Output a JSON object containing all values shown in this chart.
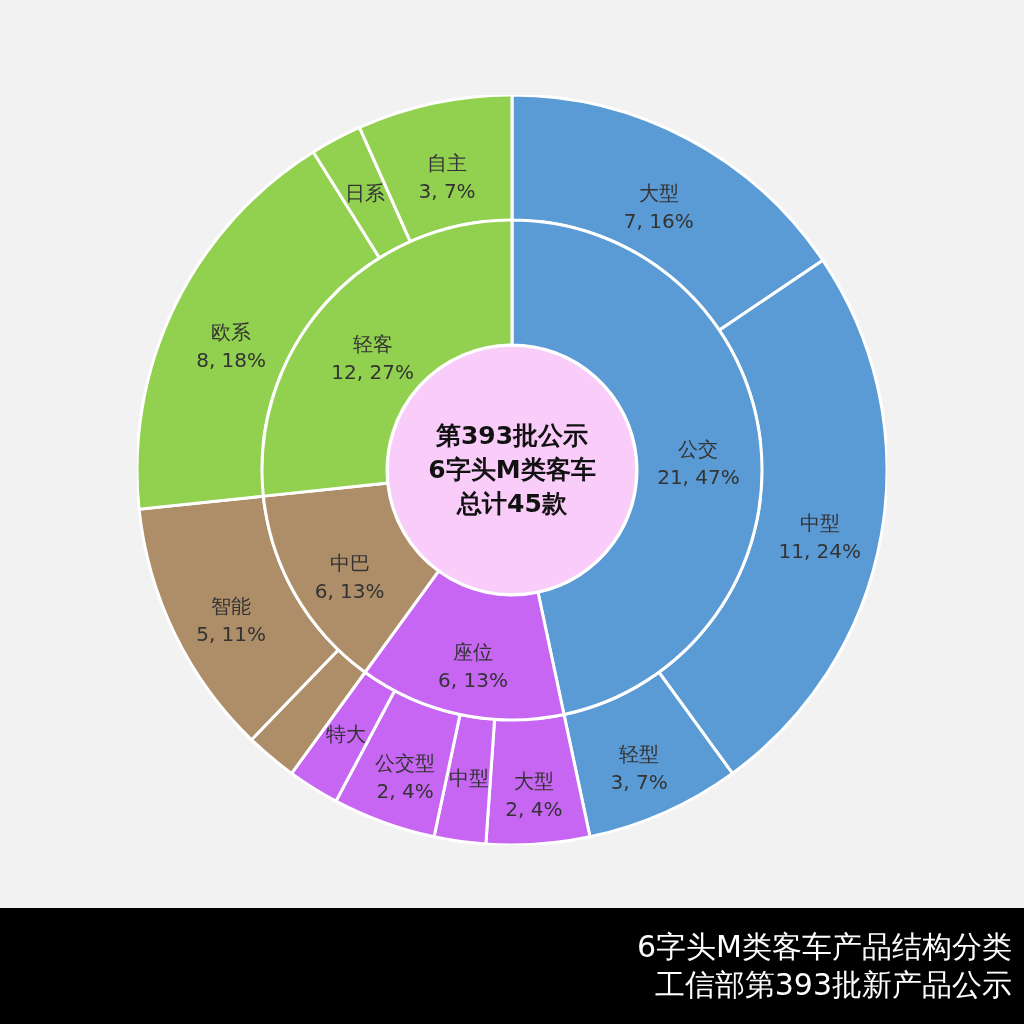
{
  "chart_data": [
    {
      "type": "donut",
      "title": "6字头M类客车产品结构分类",
      "subtitle": "工信部第393批新产品公示",
      "annotations": [
        "第393批公示",
        "6字头M类客车",
        "总计45款"
      ],
      "categories": [
        "公交",
        "座位",
        "中巴",
        "轻客"
      ],
      "values": [
        21,
        6,
        6,
        12
      ],
      "colors": [
        "#5b9bd5",
        "#c666f2",
        "#ae8e68",
        "#92d050"
      ],
      "value_labels": [
        "21, 47%",
        "6, 13%",
        "6, 13%",
        "12, 27%"
      ]
    },
    {
      "type": "donut",
      "categories": [
        "大型",
        "中型",
        "轻型",
        "大型",
        "中型",
        "公交型",
        "特大",
        null,
        "智能",
        "欧系",
        "日系",
        "自主"
      ],
      "values": [
        7,
        11,
        3,
        2,
        1,
        2,
        1,
        1,
        5,
        8,
        1,
        3
      ],
      "colors": [
        "#5b9bd5",
        "#5b9bd5",
        "#5b9bd5",
        "#c666f2",
        "#c666f2",
        "#c666f2",
        "#c666f2",
        "#ae8e68",
        "#ae8e68",
        "#92d050",
        "#92d050",
        "#92d050"
      ],
      "value_labels": [
        "7, 16%",
        "11, 24%",
        "3, 7%",
        "2, 4%",
        null,
        "2, 4%",
        null,
        null,
        "5, 11%",
        "8, 18%",
        null,
        "3, 7%"
      ]
    }
  ]
}
